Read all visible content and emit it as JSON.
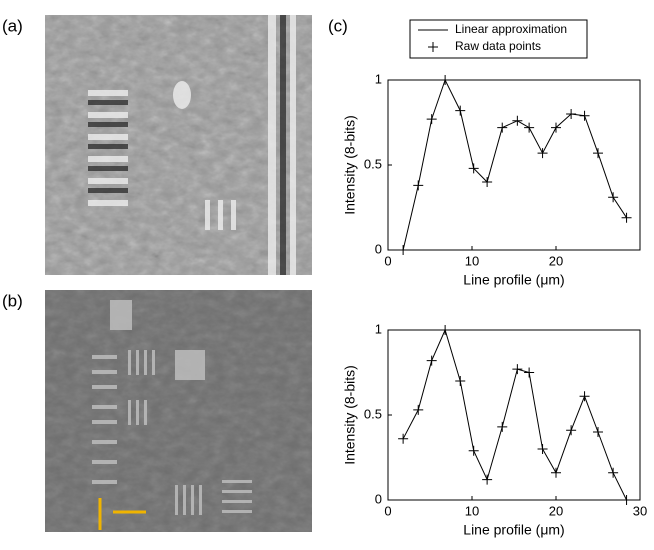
{
  "panel_labels": [
    "(a)",
    "(b)",
    "(c)"
  ],
  "chart_data": [
    {
      "type": "line",
      "ylabel": "Intensity (8-bits)",
      "xlabel": "Line profile (μm)",
      "legend": [
        "Linear approximation",
        "Raw data points"
      ],
      "legend_position": "top",
      "x": [
        1.8,
        3.6,
        5.2,
        6.8,
        8.6,
        10.2,
        11.8,
        13.6,
        15.4,
        16.8,
        18.4,
        20,
        21.8,
        23.4,
        25,
        26.8,
        28.4
      ],
      "series": [
        {
          "color": "#000000",
          "values": [
            0,
            0.38,
            0.77,
            1.0,
            0.82,
            0.48,
            0.4,
            0.72,
            0.76,
            0.72,
            0.57,
            0.72,
            0.8,
            0.79,
            0.57,
            0.31,
            0.19
          ]
        }
      ],
      "xlim": [
        0,
        30
      ],
      "xticks": [
        0,
        10,
        20
      ],
      "ylim": [
        0,
        1
      ],
      "yticks": [
        0,
        0.5,
        1
      ]
    },
    {
      "type": "line",
      "ylabel": "Intensity (8-bits)",
      "xlabel": "Line profile (μm)",
      "x": [
        1.8,
        3.6,
        5.2,
        6.8,
        8.6,
        10.2,
        11.8,
        13.6,
        15.4,
        16.8,
        18.4,
        20,
        21.8,
        23.4,
        25,
        26.8,
        28.4
      ],
      "series": [
        {
          "color": "#000000",
          "values": [
            0.36,
            0.53,
            0.82,
            1.0,
            0.7,
            0.29,
            0.12,
            0.43,
            0.77,
            0.75,
            0.3,
            0.16,
            0.41,
            0.61,
            0.4,
            0.16,
            0
          ]
        }
      ],
      "xlim": [
        0,
        30
      ],
      "xticks": [
        0,
        10,
        20,
        30
      ],
      "ylim": [
        0,
        1
      ],
      "yticks": [
        0,
        0.5,
        1
      ]
    }
  ]
}
